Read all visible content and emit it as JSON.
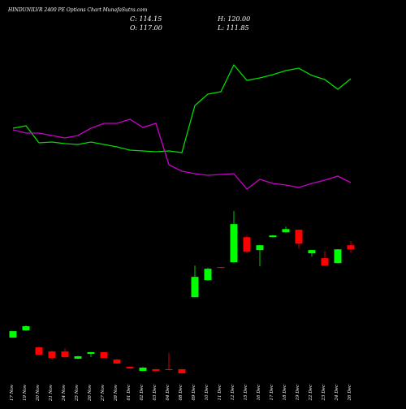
{
  "chart_data": {
    "type": "candlestick",
    "title": "HINDUNILVR 2400  PE Options  Chart MunafaSutra.com",
    "header": {
      "close": "C: 114.15",
      "open": "O: 117.00",
      "high": "H: 120.00",
      "low": "L: 111.85"
    },
    "categories": [
      "17 Nov",
      "19 Nov",
      "20 Nov",
      "21 Nov",
      "24 Nov",
      "25 Nov",
      "26 Nov",
      "27 Nov",
      "28 Nov",
      "01 Dec",
      "02 Dec",
      "03 Dec",
      "04 Dec",
      "08 Dec",
      "09 Dec",
      "10 Dec",
      "11 Dec",
      "12 Dec",
      "15 Dec",
      "16 Dec",
      "17 Dec",
      "18 Dec",
      "19 Dec",
      "22 Dec",
      "23 Dec",
      "24 Dec",
      "26 Dec"
    ],
    "open": [
      51.9,
      57.0,
      45.0,
      42.1,
      42.1,
      37.0,
      40.4,
      41.6,
      36.4,
      31.3,
      28.4,
      29.6,
      29.6,
      29.6,
      80.4,
      92.4,
      101.6,
      105.0,
      122.7,
      113.6,
      122.7,
      126.1,
      127.9,
      111.3,
      107.9,
      104.4,
      117.0
    ],
    "high": [
      56.6,
      60.5,
      45.5,
      42.5,
      44.4,
      39.0,
      41.8,
      41.8,
      36.8,
      31.5,
      31.0,
      29.8,
      41.0,
      29.8,
      102.7,
      101.0,
      101.8,
      141.0,
      123.9,
      117.2,
      124.1,
      130.1,
      128.1,
      113.8,
      113.0,
      114.3,
      120.0
    ],
    "low": [
      51.7,
      56.8,
      39.5,
      36.5,
      37.8,
      36.8,
      38.1,
      37.4,
      33.4,
      30.0,
      28.2,
      28.2,
      28.8,
      26.5,
      80.2,
      92.0,
      100.8,
      104.8,
      111.3,
      102.1,
      122.5,
      125.9,
      114.7,
      109.0,
      102.5,
      104.2,
      111.85
    ],
    "close": [
      56.4,
      59.9,
      39.9,
      37.6,
      38.1,
      38.7,
      41.6,
      37.6,
      33.6,
      30.1,
      30.7,
      28.4,
      29.0,
      26.7,
      94.7,
      100.4,
      101.0,
      131.9,
      112.4,
      117.0,
      123.9,
      128.4,
      118.1,
      113.6,
      102.7,
      114.1,
      114.15
    ],
    "up_color": "#00ff00",
    "down_color": "#ff0000",
    "ylim": [
      21,
      144
    ],
    "lines": [
      {
        "color": "#00dd00",
        "values": [
          342,
          345,
          324,
          325,
          323,
          322,
          325,
          322,
          319,
          315,
          314,
          313,
          314,
          312,
          370,
          384,
          387,
          420,
          401,
          404,
          408,
          413,
          416,
          407,
          402,
          390,
          403
        ]
      },
      {
        "color": "#cc00cc",
        "values": [
          340,
          336,
          336,
          333,
          330,
          333,
          342,
          348,
          348,
          353,
          343,
          348,
          297,
          289,
          286,
          284,
          285,
          286,
          267,
          279,
          274,
          272,
          269,
          274,
          278,
          283,
          275
        ]
      }
    ],
    "y2lim": [
      0,
      500
    ]
  }
}
